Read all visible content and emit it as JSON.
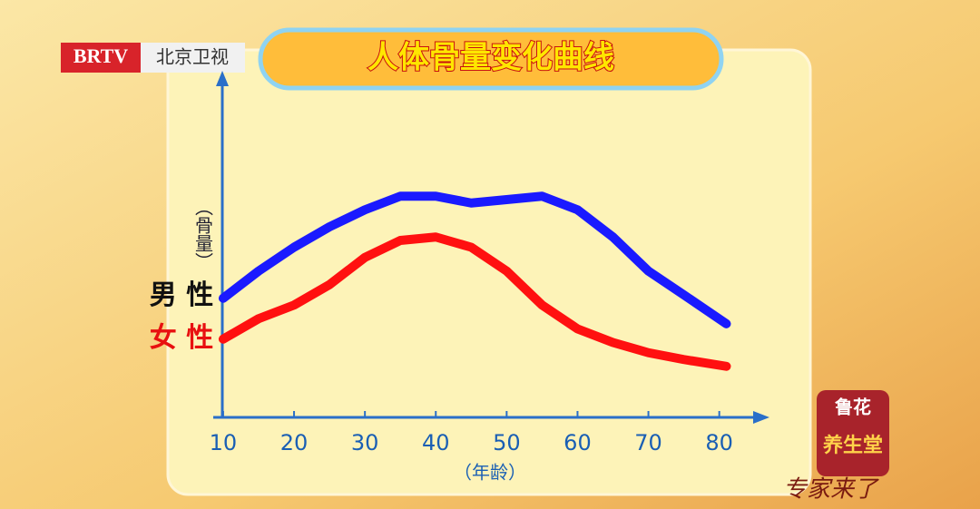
{
  "branding": {
    "station": "BRTV",
    "channel": "北京卫视",
    "sponsor": "鲁花",
    "show": "养生堂",
    "slogan": "专家来了"
  },
  "chart_data": {
    "type": "line",
    "title": "人体骨量变化曲线",
    "y_label": "（骨量）",
    "x_label": "（年龄）",
    "x": [
      10,
      15,
      20,
      25,
      30,
      35,
      40,
      45,
      50,
      55,
      60,
      65,
      70,
      75,
      81
    ],
    "series": [
      {
        "name": "男 性",
        "color": "#1a1aff",
        "values": [
          35,
          43,
          50,
          56,
          61,
          65,
          65,
          63,
          64,
          65,
          61,
          53,
          43,
          36,
          27.5
        ]
      },
      {
        "name": "女 性",
        "color": "#ff1010",
        "values": [
          23,
          29,
          33,
          39,
          47,
          52,
          53,
          50,
          43,
          33,
          26,
          22,
          19,
          17,
          15
        ]
      }
    ],
    "xlim": [
      8.6,
      86.7
    ],
    "xticks": [
      10,
      20,
      30,
      40,
      50,
      60,
      70,
      80
    ],
    "ylim": [
      0,
      100
    ],
    "yticks": [],
    "grid": false
  }
}
